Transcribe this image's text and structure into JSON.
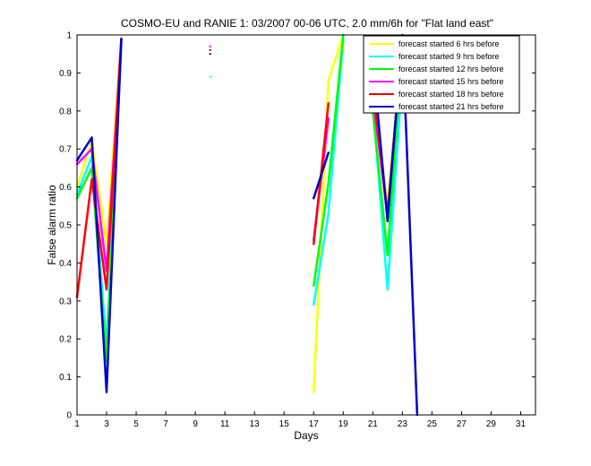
{
  "chart_data": {
    "type": "line",
    "title": "COSMO-EU and RANIE 1: 03/2007 00-06 UTC, 2.0 mm/6h for \"Flat land east\"",
    "xlabel": "Days",
    "ylabel": "False alarm ratio",
    "xlim": [
      1,
      32
    ],
    "ylim": [
      0,
      1
    ],
    "xticks": [
      1,
      3,
      5,
      7,
      9,
      11,
      13,
      15,
      17,
      19,
      21,
      23,
      25,
      27,
      29,
      31
    ],
    "yticks": [
      0,
      0.1,
      0.2,
      0.3,
      0.4,
      0.5,
      0.6,
      0.7,
      0.8,
      0.9,
      1
    ],
    "grid": false,
    "legend_position": "top-right",
    "series": [
      {
        "name": "forecast started 6 hrs before",
        "color": "#ffff00",
        "segments": [
          [
            [
              1,
              0.6
            ],
            [
              2,
              0.72
            ],
            [
              3,
              0.45
            ],
            [
              4,
              0.99
            ]
          ],
          [
            [
              10,
              0.95
            ]
          ],
          [
            [
              17,
              0.06
            ],
            [
              18,
              0.88
            ],
            [
              19,
              1.0
            ]
          ],
          [
            [
              21,
              0.85
            ],
            [
              22,
              0.55
            ],
            [
              23,
              0.97
            ]
          ]
        ]
      },
      {
        "name": "forecast started 9 hrs before",
        "color": "#00ffff",
        "segments": [
          [
            [
              1,
              0.58
            ],
            [
              2,
              0.68
            ],
            [
              3,
              0.18
            ],
            [
              4,
              0.99
            ]
          ],
          [
            [
              10,
              0.89
            ]
          ],
          [
            [
              17,
              0.29
            ],
            [
              18,
              0.53
            ],
            [
              19,
              0.99
            ]
          ],
          [
            [
              21,
              0.82
            ],
            [
              22,
              0.33
            ],
            [
              23,
              0.9
            ]
          ]
        ]
      },
      {
        "name": "forecast started 12 hrs before",
        "color": "#00ff00",
        "segments": [
          [
            [
              1,
              0.57
            ],
            [
              2,
              0.65
            ],
            [
              3,
              0.14
            ],
            [
              4,
              0.98
            ]
          ],
          [
            [
              10,
              0.96
            ]
          ],
          [
            [
              17,
              0.34
            ],
            [
              18,
              0.61
            ],
            [
              19,
              1.0
            ]
          ],
          [
            [
              21,
              0.8
            ],
            [
              22,
              0.42
            ],
            [
              23,
              0.98
            ]
          ]
        ]
      },
      {
        "name": "forecast started 15 hrs before",
        "color": "#ff00ff",
        "segments": [
          [
            [
              1,
              0.66
            ],
            [
              2,
              0.7
            ],
            [
              3,
              0.38
            ],
            [
              4,
              0.99
            ]
          ],
          [
            [
              10,
              0.97
            ]
          ],
          [
            [
              17,
              0.46
            ],
            [
              18,
              0.78
            ]
          ],
          [
            [
              21,
              0.84
            ],
            [
              22,
              0.52
            ],
            [
              23,
              0.99
            ]
          ]
        ]
      },
      {
        "name": "forecast started 18 hrs before",
        "color": "#ff0000",
        "segments": [
          [
            [
              1,
              0.31
            ],
            [
              2,
              0.62
            ],
            [
              3,
              0.33
            ],
            [
              4,
              0.99
            ]
          ],
          [
            [
              10,
              0.96
            ]
          ],
          [
            [
              17,
              0.45
            ],
            [
              18,
              0.82
            ]
          ],
          [
            [
              21,
              0.87
            ],
            [
              22,
              0.53
            ],
            [
              23,
              0.99
            ]
          ]
        ]
      },
      {
        "name": "forecast started 21 hrs before",
        "color": "#0000cc",
        "segments": [
          [
            [
              1,
              0.67
            ],
            [
              2,
              0.73
            ],
            [
              3,
              0.06
            ],
            [
              4,
              0.99
            ]
          ],
          [
            [
              10,
              0.95
            ]
          ],
          [
            [
              17,
              0.57
            ],
            [
              18,
              0.69
            ]
          ],
          [
            [
              21,
              0.94
            ],
            [
              22,
              0.51
            ],
            [
              23,
              1.0
            ],
            [
              24,
              0.0
            ]
          ]
        ]
      }
    ]
  }
}
